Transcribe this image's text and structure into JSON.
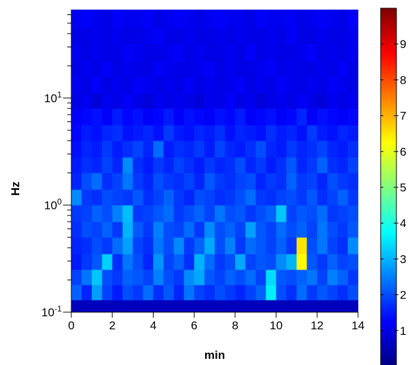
{
  "chart_data": {
    "type": "heatmap",
    "xlabel": "min",
    "ylabel": "Hz",
    "yscale": "log",
    "xlim": [
      0,
      14
    ],
    "ylim": [
      0.1,
      67
    ],
    "xticks": [
      0,
      2,
      4,
      6,
      8,
      10,
      12,
      14
    ],
    "yticks": [
      {
        "value": 0.1,
        "label": "10",
        "exponent": "-1"
      },
      {
        "value": 1,
        "label": "10",
        "exponent": "0"
      },
      {
        "value": 10,
        "label": "10",
        "exponent": "1"
      }
    ],
    "yminorticks": [
      0.2,
      0.3,
      0.4,
      0.5,
      0.6,
      0.7,
      0.8,
      0.9,
      2,
      3,
      4,
      5,
      6,
      7,
      8,
      9,
      20,
      30,
      40,
      50,
      60
    ],
    "x_edges": [
      0,
      0.5,
      1,
      1.5,
      2,
      2.5,
      3,
      3.5,
      4,
      4.5,
      5,
      5.5,
      6,
      6.5,
      7,
      7.5,
      8,
      8.5,
      9,
      9.5,
      10,
      10.5,
      11,
      11.5,
      12,
      12.5,
      13,
      13.5,
      14
    ],
    "y_edges": [
      0.1,
      0.13,
      0.18,
      0.25,
      0.35,
      0.5,
      0.7,
      1,
      1.4,
      2,
      2.8,
      4,
      5.6,
      8,
      11,
      16,
      22,
      32,
      45,
      67
    ],
    "values": [
      [
        0.6,
        0.6,
        0.6,
        0.6,
        0.6,
        0.6,
        0.6,
        0.6,
        0.6,
        0.6,
        0.6,
        0.6,
        0.6,
        0.6,
        0.6,
        0.6,
        0.6,
        0.6,
        0.6,
        0.6,
        0.6,
        0.6,
        0.6,
        0.6,
        0.6,
        0.6,
        0.6,
        0.6
      ],
      [
        2.2,
        1.6,
        2.8,
        1.9,
        1.5,
        2.0,
        1.8,
        2.3,
        1.7,
        2.1,
        1.6,
        2.4,
        1.9,
        1.7,
        2.0,
        1.8,
        1.6,
        1.9,
        2.2,
        3.6,
        2.0,
        1.7,
        2.3,
        1.8,
        2.1,
        1.9,
        1.7,
        2.0
      ],
      [
        1.9,
        2.4,
        3.2,
        2.0,
        1.8,
        2.2,
        2.1,
        1.9,
        2.5,
        2.0,
        1.8,
        2.6,
        2.9,
        2.1,
        1.9,
        2.2,
        2.0,
        2.3,
        1.9,
        3.4,
        2.1,
        2.0,
        2.2,
        2.4,
        1.9,
        2.5,
        2.2,
        1.8
      ],
      [
        1.5,
        1.8,
        2.1,
        3.3,
        1.7,
        2.4,
        2.0,
        1.6,
        2.7,
        1.9,
        2.2,
        1.7,
        3.0,
        2.3,
        1.8,
        2.0,
        2.9,
        1.9,
        2.1,
        2.0,
        2.6,
        3.0,
        6.3,
        2.1,
        1.8,
        2.2,
        1.9,
        2.0
      ],
      [
        1.6,
        1.7,
        2.0,
        1.8,
        2.3,
        2.8,
        1.9,
        1.7,
        2.4,
        2.0,
        2.6,
        1.8,
        2.2,
        2.9,
        2.0,
        2.5,
        1.8,
        2.3,
        2.1,
        1.9,
        2.2,
        1.8,
        6.5,
        2.0,
        2.4,
        1.9,
        1.7,
        2.6
      ],
      [
        1.7,
        2.0,
        1.9,
        2.2,
        1.8,
        3.0,
        2.1,
        1.8,
        2.5,
        2.0,
        1.9,
        2.3,
        1.8,
        2.6,
        2.0,
        2.2,
        1.9,
        2.8,
        2.1,
        1.9,
        2.3,
        2.0,
        2.2,
        1.9,
        2.4,
        2.0,
        1.8,
        2.1
      ],
      [
        1.8,
        1.9,
        2.2,
        2.0,
        2.5,
        3.1,
        1.8,
        1.9,
        2.1,
        2.3,
        1.8,
        2.0,
        2.2,
        1.9,
        2.4,
        2.0,
        2.1,
        1.8,
        2.0,
        2.2,
        3.2,
        1.9,
        2.1,
        2.0,
        2.3,
        1.8,
        1.9,
        2.0
      ],
      [
        2.6,
        1.8,
        1.7,
        2.0,
        1.9,
        1.8,
        2.1,
        1.7,
        1.9,
        2.2,
        1.8,
        1.6,
        2.0,
        1.9,
        1.7,
        1.8,
        2.0,
        2.3,
        1.8,
        1.7,
        1.9,
        2.0,
        1.8,
        2.1,
        1.7,
        1.9,
        2.2,
        1.8
      ],
      [
        1.6,
        2.0,
        2.3,
        1.7,
        1.9,
        2.4,
        1.8,
        1.6,
        2.0,
        1.8,
        1.7,
        1.9,
        1.6,
        2.1,
        1.8,
        1.7,
        1.9,
        2.0,
        1.6,
        1.8,
        1.7,
        2.2,
        1.8,
        1.9,
        1.6,
        2.0,
        1.8,
        1.7
      ],
      [
        1.5,
        1.7,
        1.6,
        1.9,
        1.6,
        2.6,
        1.7,
        1.5,
        1.8,
        1.6,
        1.9,
        1.7,
        1.5,
        1.8,
        1.6,
        1.7,
        2.0,
        1.6,
        1.8,
        1.5,
        1.7,
        2.1,
        1.6,
        1.8,
        2.2,
        1.7,
        1.6,
        1.9
      ],
      [
        1.4,
        1.6,
        1.5,
        1.8,
        1.5,
        1.7,
        1.9,
        1.6,
        2.3,
        1.5,
        1.7,
        1.6,
        1.8,
        1.5,
        1.9,
        1.6,
        1.5,
        1.7,
        2.0,
        1.6,
        1.5,
        1.8,
        1.6,
        1.7,
        1.9,
        1.6,
        1.5,
        1.7
      ],
      [
        1.3,
        1.5,
        1.4,
        1.6,
        1.7,
        1.4,
        1.5,
        1.6,
        1.4,
        1.8,
        1.5,
        1.4,
        1.6,
        1.5,
        1.7,
        1.4,
        1.6,
        1.5,
        1.4,
        1.7,
        1.5,
        1.6,
        1.4,
        1.8,
        1.5,
        1.4,
        1.6,
        1.5
      ],
      [
        1.2,
        1.3,
        1.4,
        1.2,
        1.5,
        1.3,
        1.4,
        1.2,
        1.3,
        1.5,
        1.2,
        1.4,
        1.3,
        1.2,
        1.4,
        1.3,
        1.5,
        1.2,
        1.3,
        1.4,
        1.2,
        1.3,
        1.6,
        1.2,
        1.4,
        1.3,
        1.2,
        1.3
      ],
      [
        1.0,
        1.1,
        0.9,
        1.1,
        1.0,
        1.2,
        1.0,
        0.9,
        1.1,
        1.0,
        1.1,
        1.0,
        0.9,
        1.1,
        1.0,
        1.2,
        1.0,
        1.1,
        0.9,
        1.0,
        1.1,
        1.0,
        1.2,
        1.0,
        0.9,
        1.1,
        1.0,
        1.1
      ],
      [
        1.1,
        1.0,
        1.2,
        1.0,
        1.1,
        1.0,
        1.2,
        1.1,
        1.0,
        1.1,
        1.0,
        1.2,
        1.0,
        1.1,
        1.0,
        1.1,
        1.2,
        1.0,
        1.1,
        1.0,
        1.2,
        1.1,
        1.0,
        1.1,
        1.0,
        1.2,
        1.1,
        1.0
      ],
      [
        1.0,
        1.1,
        1.0,
        1.2,
        1.0,
        1.1,
        1.0,
        1.0,
        1.2,
        1.1,
        1.0,
        1.0,
        1.1,
        1.2,
        1.0,
        1.1,
        1.0,
        1.0,
        1.1,
        1.2,
        1.0,
        1.1,
        1.0,
        1.0,
        1.1,
        1.0,
        1.2,
        1.0
      ],
      [
        1.1,
        1.0,
        1.1,
        1.0,
        1.0,
        1.2,
        1.1,
        1.0,
        1.0,
        1.1,
        1.2,
        1.0,
        1.1,
        1.0,
        1.0,
        1.1,
        1.0,
        1.2,
        1.0,
        1.1,
        1.0,
        1.0,
        1.1,
        1.2,
        1.0,
        1.1,
        1.0,
        1.1
      ],
      [
        1.0,
        1.0,
        1.1,
        1.0,
        1.1,
        1.0,
        1.0,
        1.1,
        1.2,
        1.0,
        1.0,
        1.1,
        1.0,
        1.0,
        1.1,
        1.0,
        1.1,
        1.0,
        1.0,
        1.1,
        1.0,
        1.2,
        1.0,
        1.0,
        1.1,
        1.0,
        1.0,
        1.1
      ],
      [
        1.1,
        1.2,
        1.1,
        1.0,
        1.2,
        1.1,
        1.1,
        1.2,
        1.0,
        1.1,
        1.2,
        1.1,
        1.0,
        1.1,
        1.2,
        1.1,
        1.1,
        1.0,
        1.2,
        1.1,
        1.1,
        1.2,
        1.0,
        1.1,
        1.2,
        1.1,
        1.0,
        1.2
      ]
    ],
    "colorbar": {
      "colormap": "jet",
      "clim": [
        0,
        10
      ],
      "ticks": [
        1,
        2,
        3,
        4,
        5,
        6,
        7,
        8,
        9
      ]
    }
  }
}
